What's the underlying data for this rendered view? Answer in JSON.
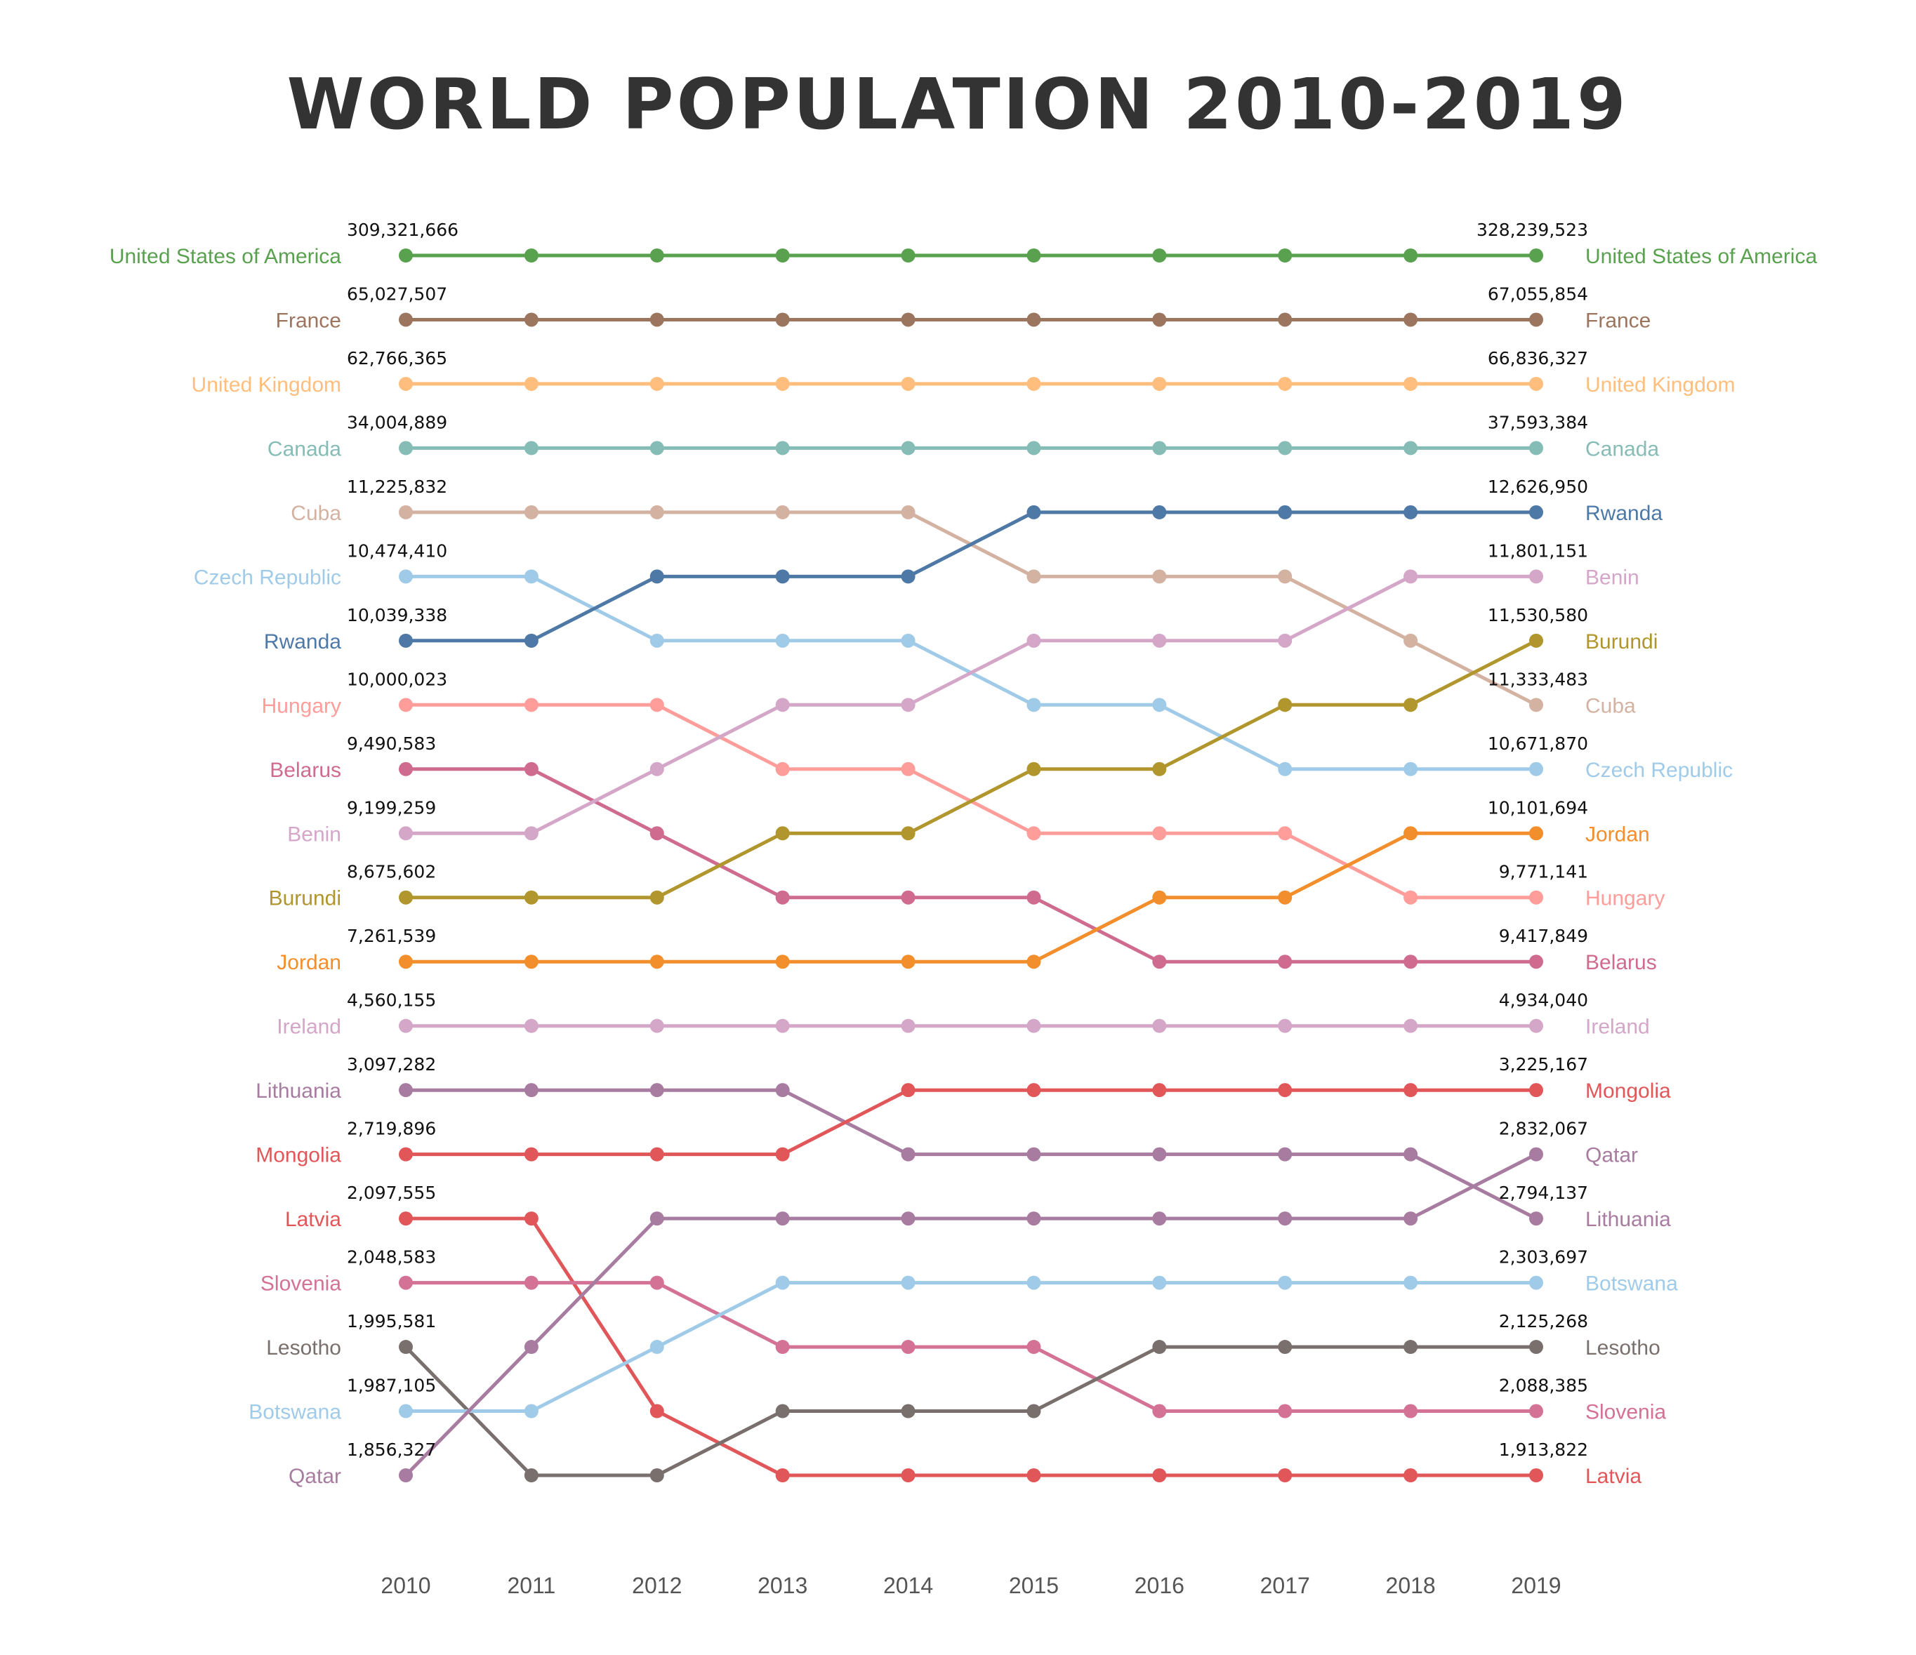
{
  "chart_data": {
    "type": "bump",
    "title": "WORLD POPULATION 2010-2019",
    "years": [
      "2010",
      "2011",
      "2012",
      "2013",
      "2014",
      "2015",
      "2016",
      "2017",
      "2018",
      "2019"
    ],
    "series": [
      {
        "name": "United States of America",
        "color": "#59a14f",
        "ranks": [
          1,
          1,
          1,
          1,
          1,
          1,
          1,
          1,
          1,
          1
        ],
        "start_value": "309,321,666",
        "end_value": "328,239,523"
      },
      {
        "name": "France",
        "color": "#9c755f",
        "ranks": [
          2,
          2,
          2,
          2,
          2,
          2,
          2,
          2,
          2,
          2
        ],
        "start_value": "65,027,507",
        "end_value": "67,055,854"
      },
      {
        "name": "United Kingdom",
        "color": "#ffbe7d",
        "ranks": [
          3,
          3,
          3,
          3,
          3,
          3,
          3,
          3,
          3,
          3
        ],
        "start_value": "62,766,365",
        "end_value": "66,836,327"
      },
      {
        "name": "Canada",
        "color": "#86bcb6",
        "ranks": [
          4,
          4,
          4,
          4,
          4,
          4,
          4,
          4,
          4,
          4
        ],
        "start_value": "34,004,889",
        "end_value": "37,593,384"
      },
      {
        "name": "Cuba",
        "color": "#d4b2a2",
        "ranks": [
          5,
          5,
          5,
          5,
          5,
          6,
          6,
          6,
          7,
          8
        ],
        "start_value": "11,225,832",
        "end_value": "11,333,483"
      },
      {
        "name": "Czech Republic",
        "color": "#a0cbe8",
        "ranks": [
          6,
          6,
          7,
          7,
          7,
          8,
          8,
          9,
          9,
          9
        ],
        "start_value": "10,474,410",
        "end_value": "10,671,870"
      },
      {
        "name": "Rwanda",
        "color": "#4e79a7",
        "ranks": [
          7,
          7,
          6,
          6,
          6,
          5,
          5,
          5,
          5,
          5
        ],
        "start_value": "10,039,338",
        "end_value": "12,626,950"
      },
      {
        "name": "Hungary",
        "color": "#ff9d9a",
        "ranks": [
          8,
          8,
          8,
          9,
          9,
          10,
          10,
          10,
          11,
          11
        ],
        "start_value": "10,000,023",
        "end_value": "9,771,141"
      },
      {
        "name": "Belarus",
        "color": "#cf6b8f",
        "ranks": [
          9,
          9,
          10,
          11,
          11,
          11,
          12,
          12,
          12,
          12
        ],
        "start_value": "9,490,583",
        "end_value": "9,417,849"
      },
      {
        "name": "Benin",
        "color": "#d4a6c8",
        "ranks": [
          10,
          10,
          9,
          8,
          8,
          7,
          7,
          7,
          6,
          6
        ],
        "start_value": "9,199,259",
        "end_value": "11,801,151"
      },
      {
        "name": "Burundi",
        "color": "#b0962c",
        "ranks": [
          11,
          11,
          11,
          10,
          10,
          9,
          9,
          8,
          8,
          7
        ],
        "start_value": "8,675,602",
        "end_value": "11,530,580"
      },
      {
        "name": "Jordan",
        "color": "#f28e2b",
        "ranks": [
          12,
          12,
          12,
          12,
          12,
          12,
          11,
          11,
          10,
          10
        ],
        "start_value": "7,261,539",
        "end_value": "10,101,694"
      },
      {
        "name": "Ireland",
        "color": "#d4a6c8",
        "ranks": [
          13,
          13,
          13,
          13,
          13,
          13,
          13,
          13,
          13,
          13
        ],
        "start_value": "4,560,155",
        "end_value": "4,934,040"
      },
      {
        "name": "Lithuania",
        "color": "#a87ca0",
        "ranks": [
          14,
          14,
          14,
          14,
          15,
          15,
          15,
          15,
          15,
          16
        ],
        "start_value": "3,097,282",
        "end_value": "2,794,137"
      },
      {
        "name": "Mongolia",
        "color": "#e15759",
        "ranks": [
          15,
          15,
          15,
          15,
          14,
          14,
          14,
          14,
          14,
          14
        ],
        "start_value": "2,719,896",
        "end_value": "3,225,167"
      },
      {
        "name": "Latvia",
        "color": "#e15759",
        "ranks": [
          16,
          16,
          19,
          20,
          20,
          20,
          20,
          20,
          20,
          20
        ],
        "start_value": "2,097,555",
        "end_value": "1,913,822"
      },
      {
        "name": "Slovenia",
        "color": "#d37295",
        "ranks": [
          17,
          17,
          17,
          18,
          18,
          18,
          19,
          19,
          19,
          19
        ],
        "start_value": "2,048,583",
        "end_value": "2,088,385"
      },
      {
        "name": "Lesotho",
        "color": "#79706e",
        "ranks": [
          18,
          20,
          20,
          19,
          19,
          19,
          18,
          18,
          18,
          18
        ],
        "start_value": "1,995,581",
        "end_value": "2,125,268"
      },
      {
        "name": "Botswana",
        "color": "#a0cbe8",
        "ranks": [
          19,
          19,
          18,
          17,
          17,
          17,
          17,
          17,
          17,
          17
        ],
        "start_value": "1,987,105",
        "end_value": "2,303,697"
      },
      {
        "name": "Qatar",
        "color": "#a87ca0",
        "ranks": [
          20,
          18,
          16,
          16,
          16,
          16,
          16,
          16,
          16,
          15
        ],
        "start_value": "1,856,327",
        "end_value": "2,832,067"
      }
    ]
  }
}
